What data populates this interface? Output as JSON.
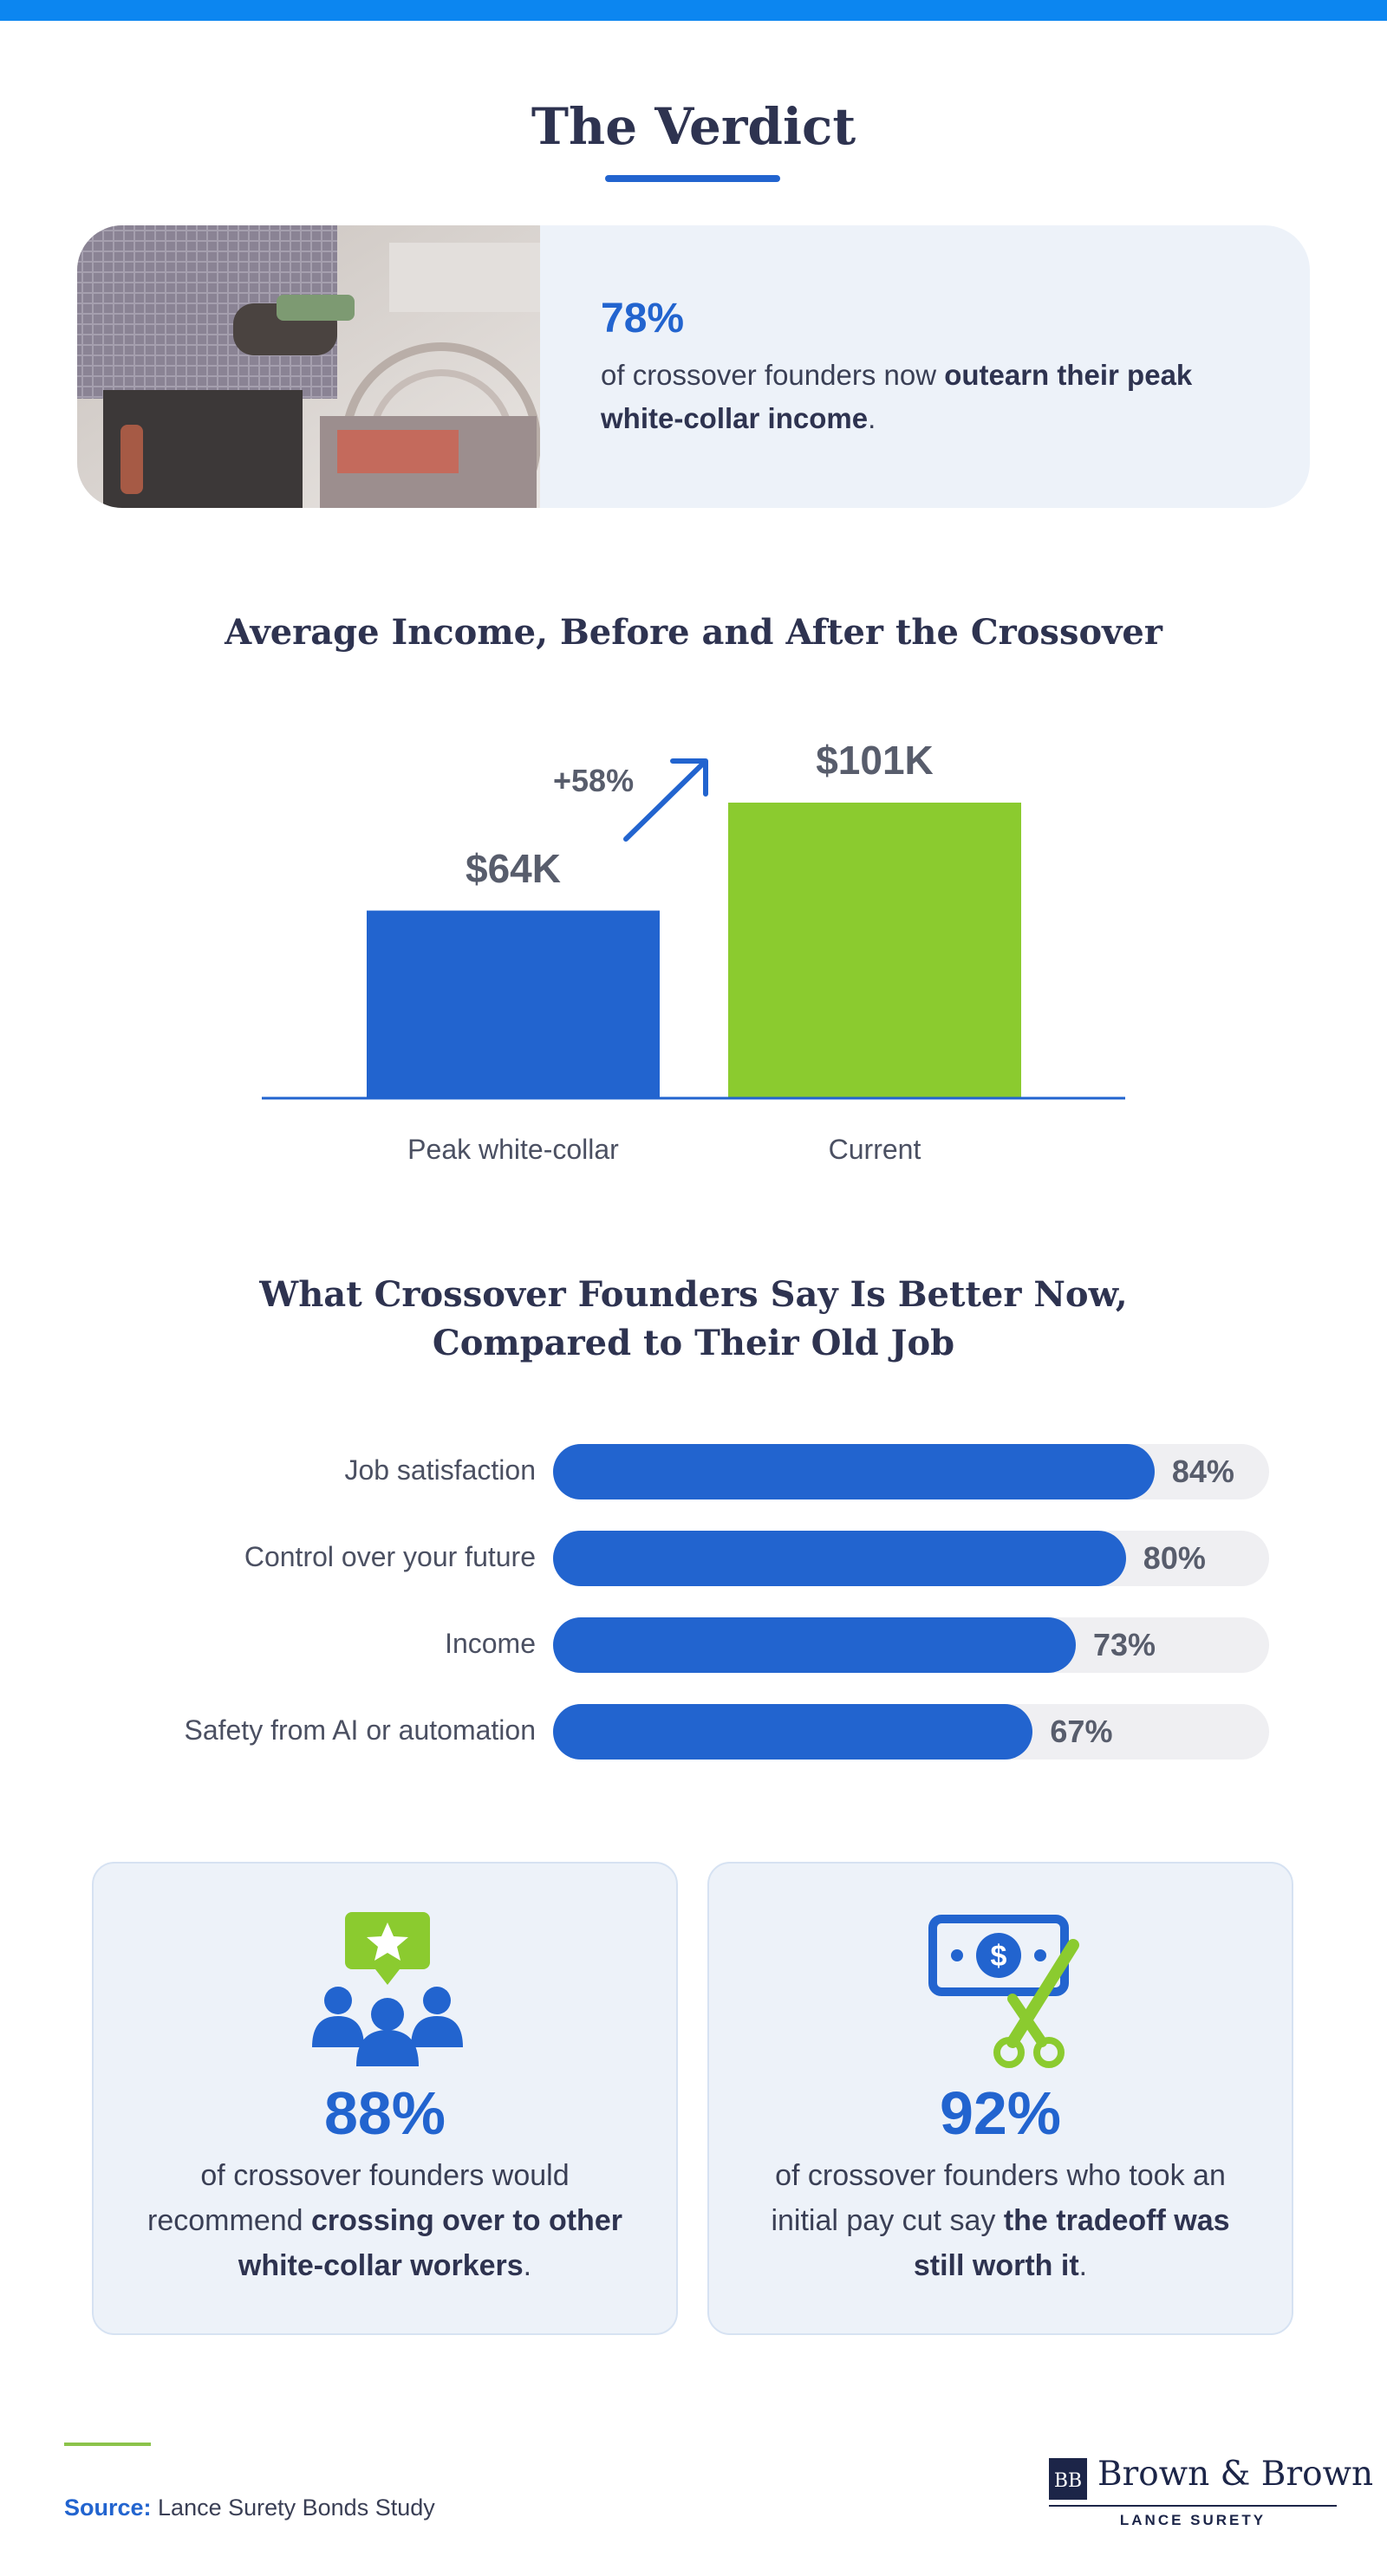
{
  "header": {
    "title": "The Verdict"
  },
  "hero": {
    "stat": "78%",
    "text_pre": "of crossover founders now ",
    "text_bold": "outearn their peak white-collar income",
    "text_post": "."
  },
  "chart_data": [
    {
      "type": "bar",
      "title": "Average Income, Before and After the Crossover",
      "categories": [
        "Peak white-collar",
        "Current"
      ],
      "values": [
        64,
        101
      ],
      "value_labels": [
        "$64K",
        "$101K"
      ],
      "annotation": "+58%",
      "colors": [
        "#2264cf",
        "#8bcb2f"
      ],
      "ylim": [
        0,
        110
      ]
    },
    {
      "type": "bar",
      "orientation": "horizontal",
      "title_lines": [
        "What Crossover Founders Say Is Better Now,",
        "Compared to Their Old Job"
      ],
      "categories": [
        "Job satisfaction",
        "Control over your future",
        "Income",
        "Safety from AI or automation"
      ],
      "values": [
        84,
        80,
        73,
        67
      ],
      "value_labels": [
        "84%",
        "80%",
        "73%",
        "67%"
      ],
      "xlim": [
        0,
        100
      ],
      "color": "#2264cf"
    }
  ],
  "cards": [
    {
      "icon": "people-star-icon",
      "value": "88%",
      "text_pre": "of crossover founders would recommend ",
      "text_bold": "crossing over to other white-collar workers",
      "text_post": "."
    },
    {
      "icon": "money-scissors-icon",
      "value": "92%",
      "text_pre": "of crossover founders who took an initial pay cut say ",
      "text_bold": "the tradeoff was still worth it",
      "text_post": "."
    }
  ],
  "footer": {
    "source_label": "Source:",
    "source_text": " Lance Surety Bonds Study",
    "logo_mark": "BB",
    "logo_name": "Brown & Brown",
    "logo_sub": "LANCE SURETY"
  },
  "colors": {
    "accent_blue": "#2264cf",
    "accent_green": "#8bcb2f",
    "top_strip": "#0c86f0"
  }
}
